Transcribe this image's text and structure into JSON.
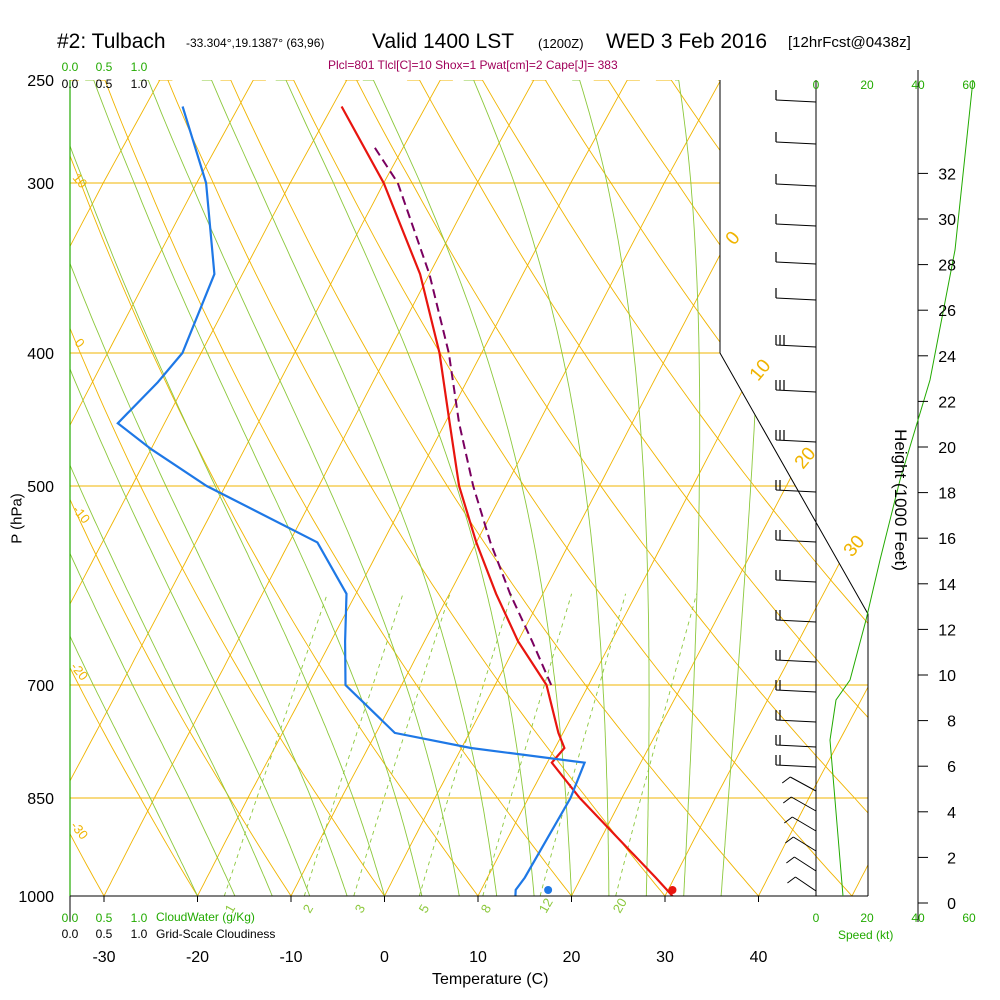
{
  "header": {
    "station": "#2: Tulbach",
    "coords": "-33.304°,19.1387° (63,96)",
    "valid": "Valid 1400 LST",
    "utc": "(1200Z)",
    "date": "WED 3 Feb 2016",
    "fcst": "[12hrFcst@0438z]",
    "indices": "Plcl=801 Tlcl[C]=10 Shox=1 Pwat[cm]=2 Cape[J]= 383"
  },
  "chart_data": {
    "type": "skew-t",
    "title": "#2: Tulbach  Valid 1400 LST (1200Z) WED 3 Feb 2016",
    "xlabel": "Temperature (C)",
    "ylabel": "P (hPa)",
    "y2label": "Height (1000 Feet)",
    "x_ticks": [
      "-30",
      "-20",
      "-10",
      "0",
      "10",
      "20",
      "30",
      "40"
    ],
    "p_ticks": [
      "250",
      "300",
      "400",
      "500",
      "700",
      "850",
      "1000"
    ],
    "height_ticks": [
      "0",
      "2",
      "4",
      "6",
      "8",
      "10",
      "12",
      "14",
      "16",
      "18",
      "20",
      "22",
      "24",
      "26",
      "28",
      "30",
      "32"
    ],
    "speed_ticks": [
      "0",
      "20",
      "40",
      "60"
    ],
    "speed_label": "Speed (kt)",
    "cloud_ticks": [
      "0.0",
      "0.5",
      "1.0"
    ],
    "cloudwater_label": "CloudWater (g/Kg)",
    "cloudiness_label": "Grid-Scale Cloudiness",
    "isotherm_labels": [
      "0",
      "10",
      "20",
      "30"
    ],
    "dry_adiabat_labels": [
      "10",
      "0",
      "-10",
      "-20",
      "-30"
    ],
    "mixing_ratio_labels": [
      "1",
      "2",
      "3",
      "5",
      "8",
      "12",
      "20"
    ],
    "temperature": {
      "p": [
        1000,
        970,
        930,
        850,
        800,
        780,
        760,
        700,
        650,
        600,
        550,
        500,
        450,
        400,
        350,
        300,
        262
      ],
      "t": [
        30.8,
        28,
        24,
        15.5,
        10.5,
        11,
        9.5,
        5.5,
        0,
        -5,
        -10,
        -15,
        -19.5,
        -24.5,
        -31,
        -40,
        -49
      ]
    },
    "parcel": {
      "p": [
        700,
        650,
        600,
        550,
        500,
        450,
        400,
        350,
        300,
        280
      ],
      "t": [
        6,
        1.5,
        -3.5,
        -8.5,
        -13.5,
        -18.5,
        -23.5,
        -30,
        -38.5,
        -43.5
      ]
    },
    "dewpoint": {
      "p": [
        1000,
        990,
        970,
        850,
        800,
        780,
        760,
        700,
        650,
        600,
        550,
        500,
        470,
        450,
        420,
        400,
        350,
        300,
        262
      ],
      "td": [
        14,
        13.7,
        14,
        14.5,
        14,
        1,
        -8,
        -16,
        -18.5,
        -21,
        -27,
        -42,
        -50,
        -55,
        -53,
        -52,
        -53,
        -59,
        -66
      ]
    },
    "surface": {
      "t": 30.8,
      "td": 17.5
    }
  }
}
